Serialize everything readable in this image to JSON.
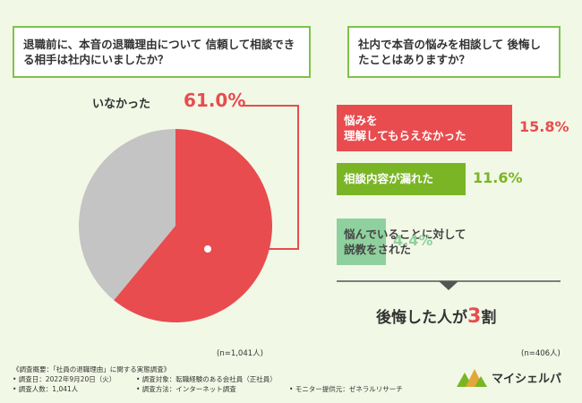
{
  "questions": {
    "q1": "退職前に、本音の退職理由について 信頼して相談できる相手は社内にいましたか？",
    "q2": "社内で本音の悩みを相談して 後悔したことはありますか？"
  },
  "pie": {
    "label": "いなかった",
    "pct": "61.0%",
    "n": "(n=1,041人)"
  },
  "bars": {
    "n": "(n=406人)"
  },
  "conclusion": {
    "pre": "後悔した人が",
    "num": "3",
    "post": "割"
  },
  "footer": {
    "line1": "《調査概要：「社員の退職理由」に関する実態調査》",
    "line2a": "• 調査日：2022年9月20日（火）",
    "line2b": "• 調査対象：転職経験のある会社員（正社員）",
    "line3a": "• 調査人数：1,041人",
    "line3b": "• 調査方法：インターネット調査",
    "right": "• モニター提供元：ゼネラルリサーチ"
  },
  "logo": {
    "text": "マイシェルパ"
  },
  "colors": {
    "red": "#e84c4f",
    "green": "#7ab526",
    "light_green": "#8fd19e",
    "gray": "#c4c4c4",
    "frame": "#7fc24b"
  },
  "chart_data": [
    {
      "type": "pie",
      "slices": [
        {
          "label": "いなかった",
          "value": 61.0,
          "color": "#e84c4f"
        },
        {
          "label": "",
          "value": 39.0,
          "color": "#c4c4c4"
        }
      ]
    },
    {
      "type": "bar",
      "categories": [
        "悩みを理解してもらえなかった",
        "相談内容が漏れた",
        "悩んでいることに対して説教をされた"
      ],
      "values": [
        15.8,
        11.6,
        4.4
      ],
      "value_labels": [
        "15.8%",
        "11.6%",
        "4.4%"
      ],
      "colors": [
        "#e84c4f",
        "#7ab526",
        "#8fd19e"
      ]
    }
  ]
}
